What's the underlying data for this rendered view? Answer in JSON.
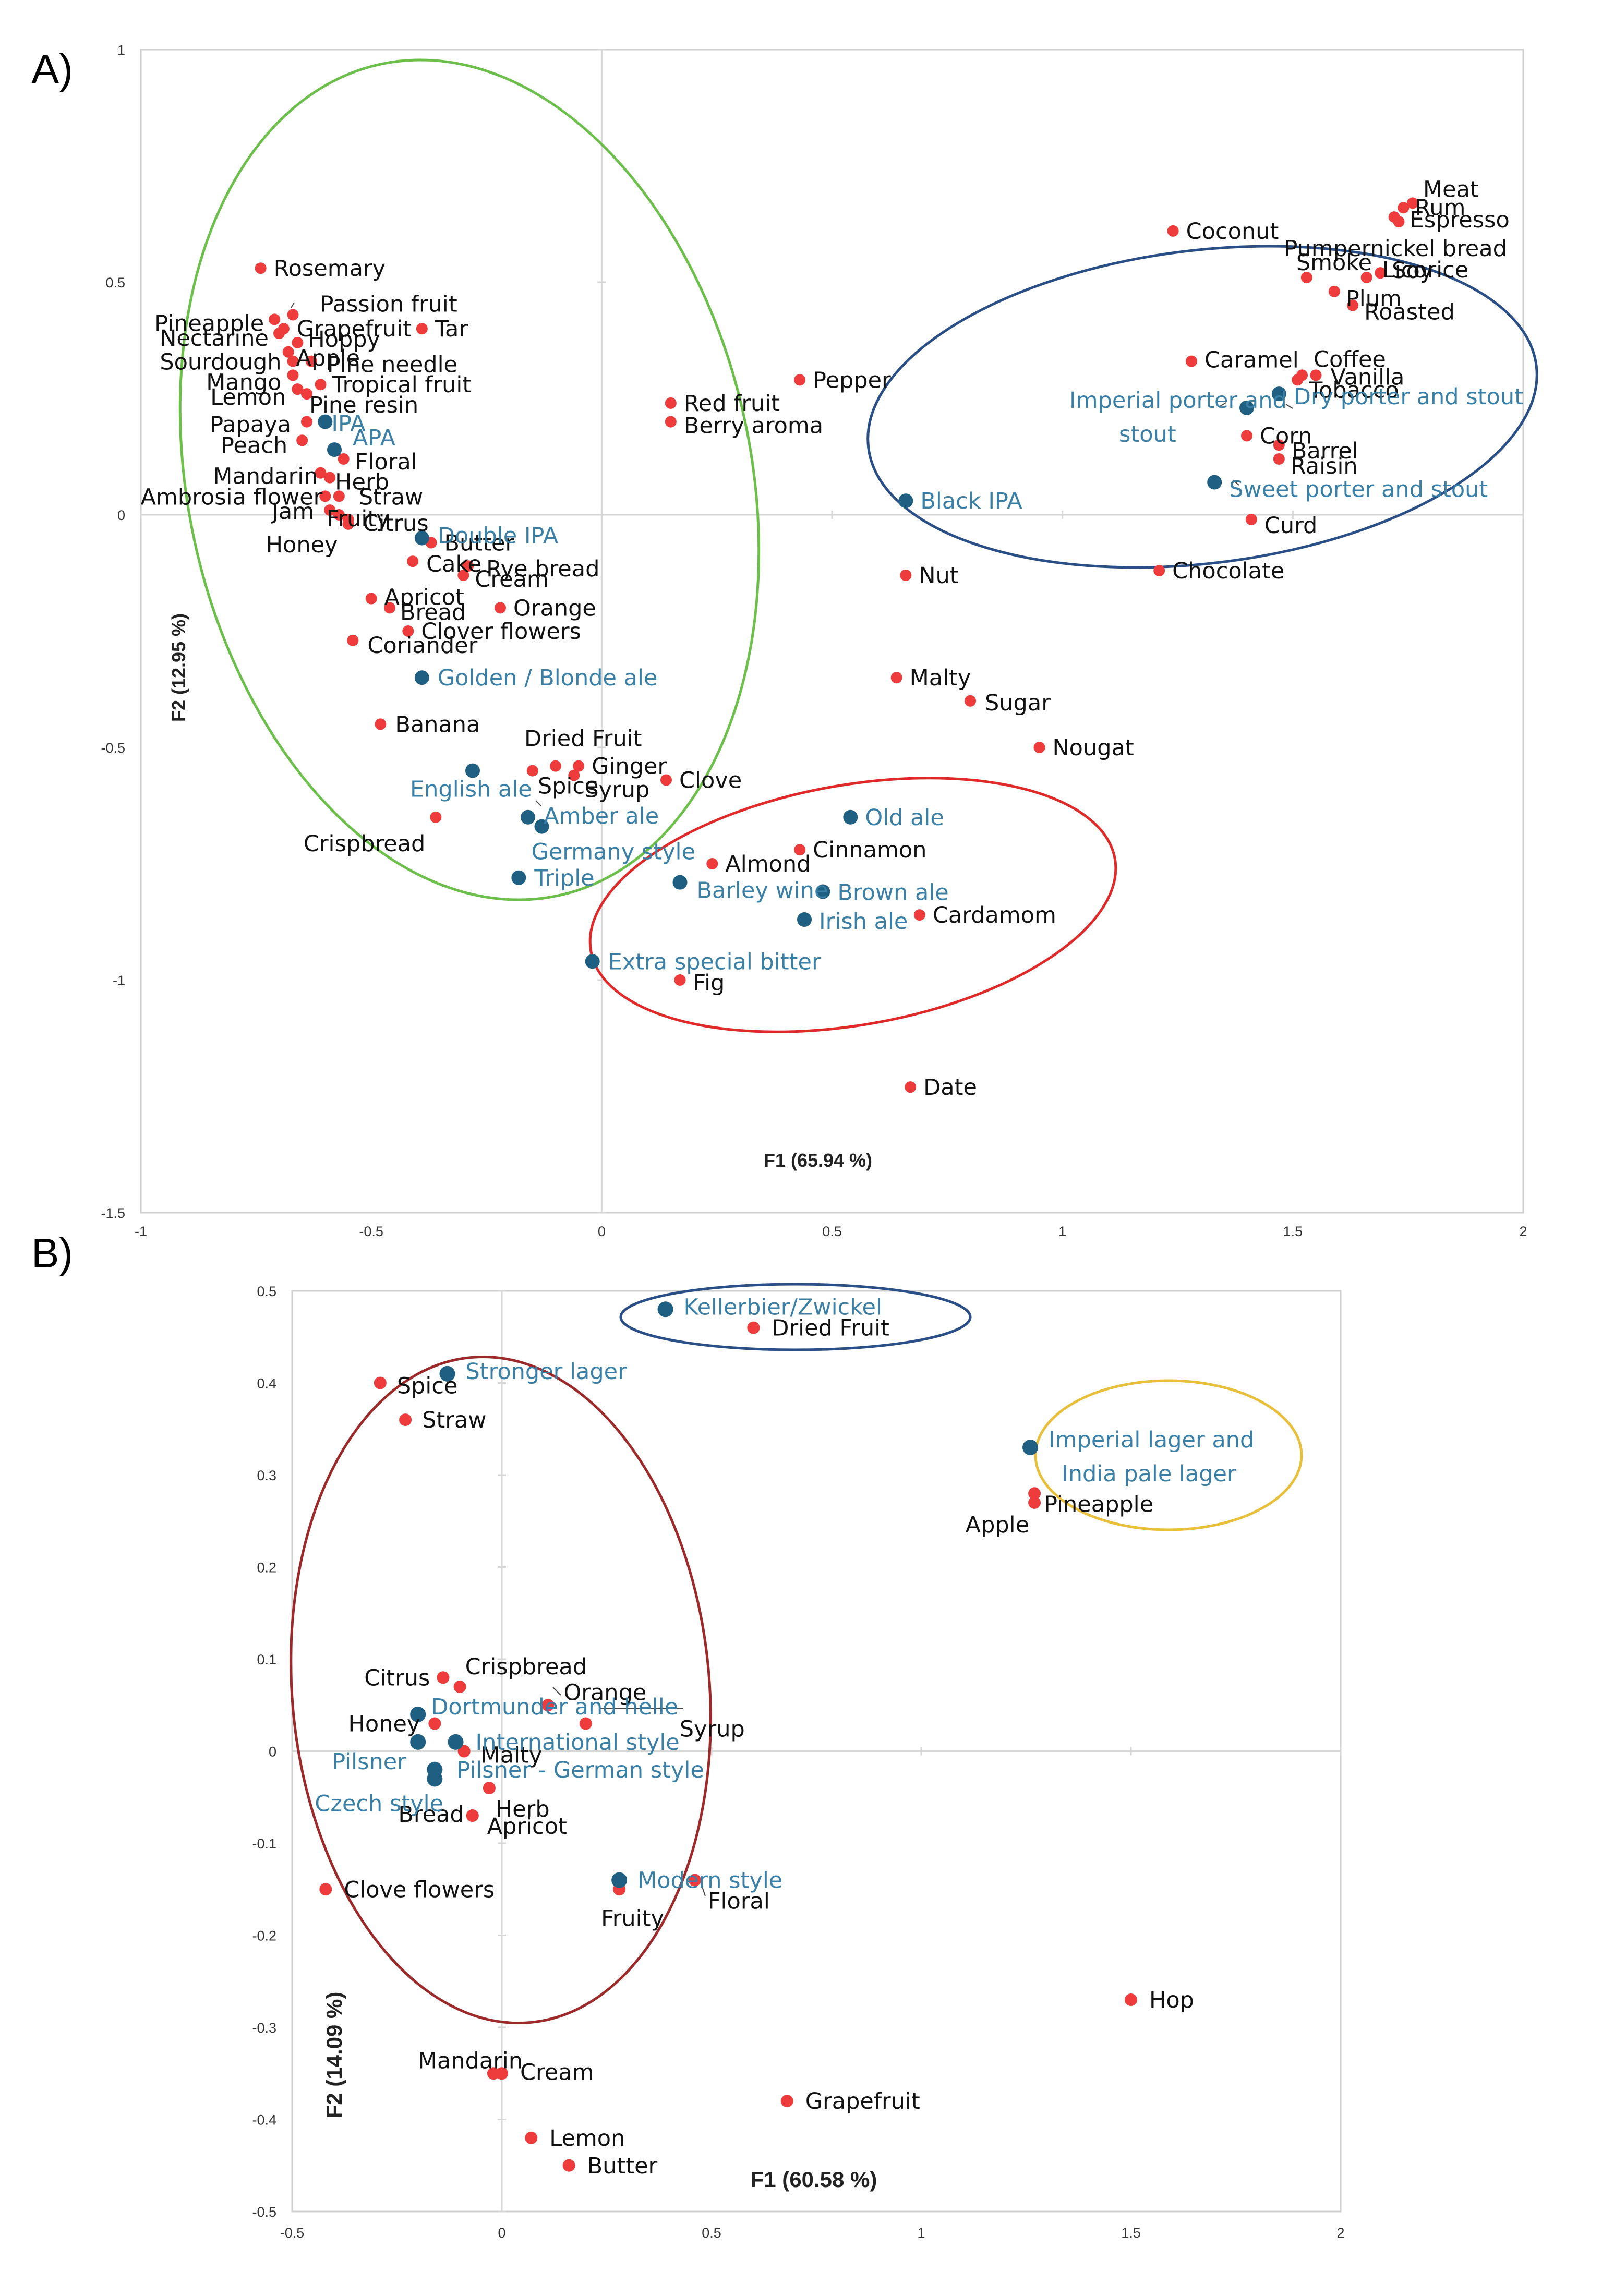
{
  "colors": {
    "attribute_point": "#ee3b3b",
    "attribute_text": "#111111",
    "style_point": "#1f5f82",
    "style_text": "#3a7fa5",
    "green_ellipse": "#6cbf4a",
    "blue_ellipse": "#2a4e86",
    "red_ellipse": "#e02a2a",
    "darkred_ellipse": "#9c2a2a",
    "yellow_ellipse": "#e8bf3a"
  },
  "chart_data": [
    {
      "panel": "A)",
      "type": "scatter",
      "xlabel": "F1 (65.94 %)",
      "ylabel": "F2 (12.95 %)",
      "xlim": [
        -1,
        2
      ],
      "ylim": [
        -1.5,
        1
      ],
      "xticks": [
        -1,
        -0.5,
        0,
        0.5,
        1,
        1.5,
        2
      ],
      "yticks": [
        -1.5,
        -1,
        -0.5,
        0,
        0.5,
        1
      ],
      "xtick_labels": [
        "-1",
        "-0.5",
        "0",
        "0.5",
        "1",
        "1.5",
        "2"
      ],
      "ytick_labels": [
        "-1.5",
        "-1",
        "-0.5",
        "0",
        "0.5",
        "1"
      ],
      "series": [
        {
          "name": "Attributes",
          "kind": "attribute",
          "points": [
            {
              "label": "Meat",
              "x": 1.76,
              "y": 0.67
            },
            {
              "label": "Rum",
              "x": 1.74,
              "y": 0.66
            },
            {
              "label": "Espresso",
              "x": 1.72,
              "y": 0.64
            },
            {
              "label": "Pumpernickel bread",
              "x": 1.73,
              "y": 0.63
            },
            {
              "label": "Coconut",
              "x": 1.24,
              "y": 0.61
            },
            {
              "label": "Smoke",
              "x": 1.53,
              "y": 0.51
            },
            {
              "label": "Licorice",
              "x": 1.66,
              "y": 0.51
            },
            {
              "label": "Soy",
              "x": 1.69,
              "y": 0.52
            },
            {
              "label": "Plum",
              "x": 1.59,
              "y": 0.48
            },
            {
              "label": "Roasted",
              "x": 1.63,
              "y": 0.45
            },
            {
              "label": "Coffee",
              "x": 1.52,
              "y": 0.3
            },
            {
              "label": "Caramel",
              "x": 1.28,
              "y": 0.33
            },
            {
              "label": "Vanilla",
              "x": 1.55,
              "y": 0.3
            },
            {
              "label": "Tobacco",
              "x": 1.51,
              "y": 0.29
            },
            {
              "label": "Corn",
              "x": 1.4,
              "y": 0.17
            },
            {
              "label": "Barrel",
              "x": 1.47,
              "y": 0.15
            },
            {
              "label": "Raisin",
              "x": 1.47,
              "y": 0.12
            },
            {
              "label": "Curd",
              "x": 1.41,
              "y": -0.01
            },
            {
              "label": "Chocolate",
              "x": 1.21,
              "y": -0.12
            },
            {
              "label": "Rosemary",
              "x": -0.74,
              "y": 0.53
            },
            {
              "label": "Passion fruit",
              "x": -0.67,
              "y": 0.43
            },
            {
              "label": "Pineapple",
              "x": -0.71,
              "y": 0.42
            },
            {
              "label": "Grapefruit",
              "x": -0.69,
              "y": 0.4
            },
            {
              "label": "Tar",
              "x": -0.39,
              "y": 0.4
            },
            {
              "label": "Nectarine",
              "x": -0.7,
              "y": 0.39
            },
            {
              "label": "Hoppy",
              "x": -0.66,
              "y": 0.37
            },
            {
              "label": "Apple",
              "x": -0.68,
              "y": 0.35
            },
            {
              "label": "Sourdough",
              "x": -0.67,
              "y": 0.33
            },
            {
              "label": "Pine needle",
              "x": -0.63,
              "y": 0.33
            },
            {
              "label": "Mango",
              "x": -0.67,
              "y": 0.3
            },
            {
              "label": "Tropical fruit",
              "x": -0.61,
              "y": 0.28
            },
            {
              "label": "Lemon",
              "x": -0.66,
              "y": 0.27
            },
            {
              "label": "Pine resin",
              "x": -0.64,
              "y": 0.26
            },
            {
              "label": "Pepper",
              "x": 0.43,
              "y": 0.29
            },
            {
              "label": "Red fruit",
              "x": 0.15,
              "y": 0.24
            },
            {
              "label": "Berry aroma",
              "x": 0.15,
              "y": 0.2
            },
            {
              "label": "Papaya",
              "x": -0.64,
              "y": 0.2
            },
            {
              "label": "Peach",
              "x": -0.65,
              "y": 0.16
            },
            {
              "label": "Floral",
              "x": -0.56,
              "y": 0.12
            },
            {
              "label": "Mandarin",
              "x": -0.61,
              "y": 0.09
            },
            {
              "label": "Herb",
              "x": -0.59,
              "y": 0.08
            },
            {
              "label": "Ambrosia flower",
              "x": -0.6,
              "y": 0.04
            },
            {
              "label": "Straw",
              "x": -0.57,
              "y": 0.04
            },
            {
              "label": "Jam",
              "x": -0.59,
              "y": 0.01
            },
            {
              "label": "Fruity",
              "x": -0.57,
              "y": 0.0
            },
            {
              "label": "Citrus",
              "x": -0.55,
              "y": -0.01
            },
            {
              "label": "Honey",
              "x": -0.55,
              "y": -0.02
            },
            {
              "label": "Butter",
              "x": -0.37,
              "y": -0.06
            },
            {
              "label": "Cake",
              "x": -0.41,
              "y": -0.1
            },
            {
              "label": "Rye bread",
              "x": -0.29,
              "y": -0.11
            },
            {
              "label": "Cream",
              "x": -0.3,
              "y": -0.13
            },
            {
              "label": "Apricot",
              "x": -0.5,
              "y": -0.18
            },
            {
              "label": "Bread",
              "x": -0.46,
              "y": -0.2
            },
            {
              "label": "Orange",
              "x": -0.22,
              "y": -0.2
            },
            {
              "label": "Clover flowers",
              "x": -0.42,
              "y": -0.25
            },
            {
              "label": "Coriander",
              "x": -0.54,
              "y": -0.27
            },
            {
              "label": "Nut",
              "x": 0.66,
              "y": -0.13
            },
            {
              "label": "Malty",
              "x": 0.64,
              "y": -0.35
            },
            {
              "label": "Sugar",
              "x": 0.8,
              "y": -0.4
            },
            {
              "label": "Banana",
              "x": -0.48,
              "y": -0.45
            },
            {
              "label": "Nougat",
              "x": 0.95,
              "y": -0.5
            },
            {
              "label": "Dried Fruit",
              "x": -0.1,
              "y": -0.54
            },
            {
              "label": "Ginger",
              "x": -0.05,
              "y": -0.54
            },
            {
              "label": "Spice",
              "x": -0.15,
              "y": -0.55
            },
            {
              "label": "Syrup",
              "x": -0.06,
              "y": -0.56
            },
            {
              "label": "Clove",
              "x": 0.14,
              "y": -0.57
            },
            {
              "label": "Crispbread",
              "x": -0.36,
              "y": -0.65
            },
            {
              "label": "Cinnamon",
              "x": 0.43,
              "y": -0.72
            },
            {
              "label": "Almond",
              "x": 0.24,
              "y": -0.75
            },
            {
              "label": "Cardamom",
              "x": 0.69,
              "y": -0.86
            },
            {
              "label": "Fig",
              "x": 0.17,
              "y": -1.0
            },
            {
              "label": "Date",
              "x": 0.67,
              "y": -1.23
            }
          ]
        },
        {
          "name": "Beer styles",
          "kind": "style",
          "points": [
            {
              "label": "Imperial porter and stout",
              "x": 1.4,
              "y": 0.23
            },
            {
              "label": "Dry porter and stout",
              "x": 1.47,
              "y": 0.26
            },
            {
              "label": "Sweet porter and stout",
              "x": 1.33,
              "y": 0.07
            },
            {
              "label": "Black IPA",
              "x": 0.66,
              "y": 0.03
            },
            {
              "label": "IPA",
              "x": -0.6,
              "y": 0.2
            },
            {
              "label": "APA",
              "x": -0.58,
              "y": 0.14
            },
            {
              "label": "Double IPA",
              "x": -0.39,
              "y": -0.05
            },
            {
              "label": "Golden / Blonde ale",
              "x": -0.39,
              "y": -0.35
            },
            {
              "label": "English ale",
              "x": -0.28,
              "y": -0.55
            },
            {
              "label": "Amber ale",
              "x": -0.16,
              "y": -0.65
            },
            {
              "label": "Germany style",
              "x": -0.13,
              "y": -0.67
            },
            {
              "label": "Triple",
              "x": -0.18,
              "y": -0.78
            },
            {
              "label": "Old ale",
              "x": 0.54,
              "y": -0.65
            },
            {
              "label": "Barley wine",
              "x": 0.17,
              "y": -0.79
            },
            {
              "label": "Brown ale",
              "x": 0.48,
              "y": -0.81
            },
            {
              "label": "Irish ale",
              "x": 0.44,
              "y": -0.87
            },
            {
              "label": "Extra special bitter",
              "x": -0.02,
              "y": -0.96
            }
          ]
        }
      ]
    },
    {
      "panel": "B)",
      "type": "scatter",
      "xlabel": "F1 (60.58 %)",
      "ylabel": "F2 (14.09 %)",
      "xlim": [
        -0.5,
        2
      ],
      "ylim": [
        -0.5,
        0.5
      ],
      "xticks": [
        -0.5,
        0,
        0.5,
        1,
        1.5,
        2
      ],
      "yticks": [
        -0.5,
        -0.4,
        -0.3,
        -0.2,
        -0.1,
        0,
        0.1,
        0.2,
        0.3,
        0.4,
        0.5
      ],
      "xtick_labels": [
        "-0.5",
        "0",
        "0.5",
        "1",
        "1.5",
        "2"
      ],
      "ytick_labels": [
        "-0.5",
        "-0.4",
        "-0.3",
        "-0.2",
        "-0.1",
        "0",
        "0.1",
        "0.2",
        "0.3",
        "0.4",
        "0.5"
      ],
      "series": [
        {
          "name": "Attributes",
          "kind": "attribute",
          "points": [
            {
              "label": "Dried Fruit",
              "x": 0.6,
              "y": 0.46
            },
            {
              "label": "Spice",
              "x": -0.29,
              "y": 0.4
            },
            {
              "label": "Straw",
              "x": -0.23,
              "y": 0.36
            },
            {
              "label": "Pineapple",
              "x": 1.27,
              "y": 0.28
            },
            {
              "label": "Apple",
              "x": 1.27,
              "y": 0.27
            },
            {
              "label": "Citrus",
              "x": -0.14,
              "y": 0.08
            },
            {
              "label": "Crispbread",
              "x": -0.1,
              "y": 0.07
            },
            {
              "label": "Orange",
              "x": 0.11,
              "y": 0.05
            },
            {
              "label": "Honey",
              "x": -0.16,
              "y": 0.03
            },
            {
              "label": "Syrup",
              "x": 0.2,
              "y": 0.03
            },
            {
              "label": "Malty",
              "x": -0.09,
              "y": 0.0
            },
            {
              "label": "Herb",
              "x": -0.03,
              "y": -0.04
            },
            {
              "label": "Apricot",
              "x": -0.07,
              "y": -0.07
            },
            {
              "label": "Bread",
              "x": -0.07,
              "y": -0.07
            },
            {
              "label": "Floral",
              "x": 0.46,
              "y": -0.14
            },
            {
              "label": "Fruity",
              "x": 0.28,
              "y": -0.15
            },
            {
              "label": "Clove flowers",
              "x": -0.42,
              "y": -0.15
            },
            {
              "label": "Hop",
              "x": 1.5,
              "y": -0.27
            },
            {
              "label": "Mandarin",
              "x": -0.02,
              "y": -0.35
            },
            {
              "label": "Cream",
              "x": 0.0,
              "y": -0.35
            },
            {
              "label": "Grapefruit",
              "x": 0.68,
              "y": -0.38
            },
            {
              "label": "Lemon",
              "x": 0.07,
              "y": -0.42
            },
            {
              "label": "Butter",
              "x": 0.16,
              "y": -0.45
            }
          ]
        },
        {
          "name": "Beer styles",
          "kind": "style",
          "points": [
            {
              "label": "Kellerbier/Zwickel",
              "x": 0.39,
              "y": 0.48
            },
            {
              "label": "Stronger lager",
              "x": -0.13,
              "y": 0.41
            },
            {
              "label": "Imperial lager and India pale lager",
              "x": 1.26,
              "y": 0.33
            },
            {
              "label": "Dortmunder and helle",
              "x": -0.2,
              "y": 0.04
            },
            {
              "label": "International style",
              "x": -0.11,
              "y": 0.01
            },
            {
              "label": "Pilsner",
              "x": -0.2,
              "y": 0.01
            },
            {
              "label": "Pilsner - German style",
              "x": -0.16,
              "y": -0.02
            },
            {
              "label": "Czech style",
              "x": -0.16,
              "y": -0.03
            },
            {
              "label": "Modern style",
              "x": 0.28,
              "y": -0.14
            }
          ]
        }
      ]
    }
  ]
}
